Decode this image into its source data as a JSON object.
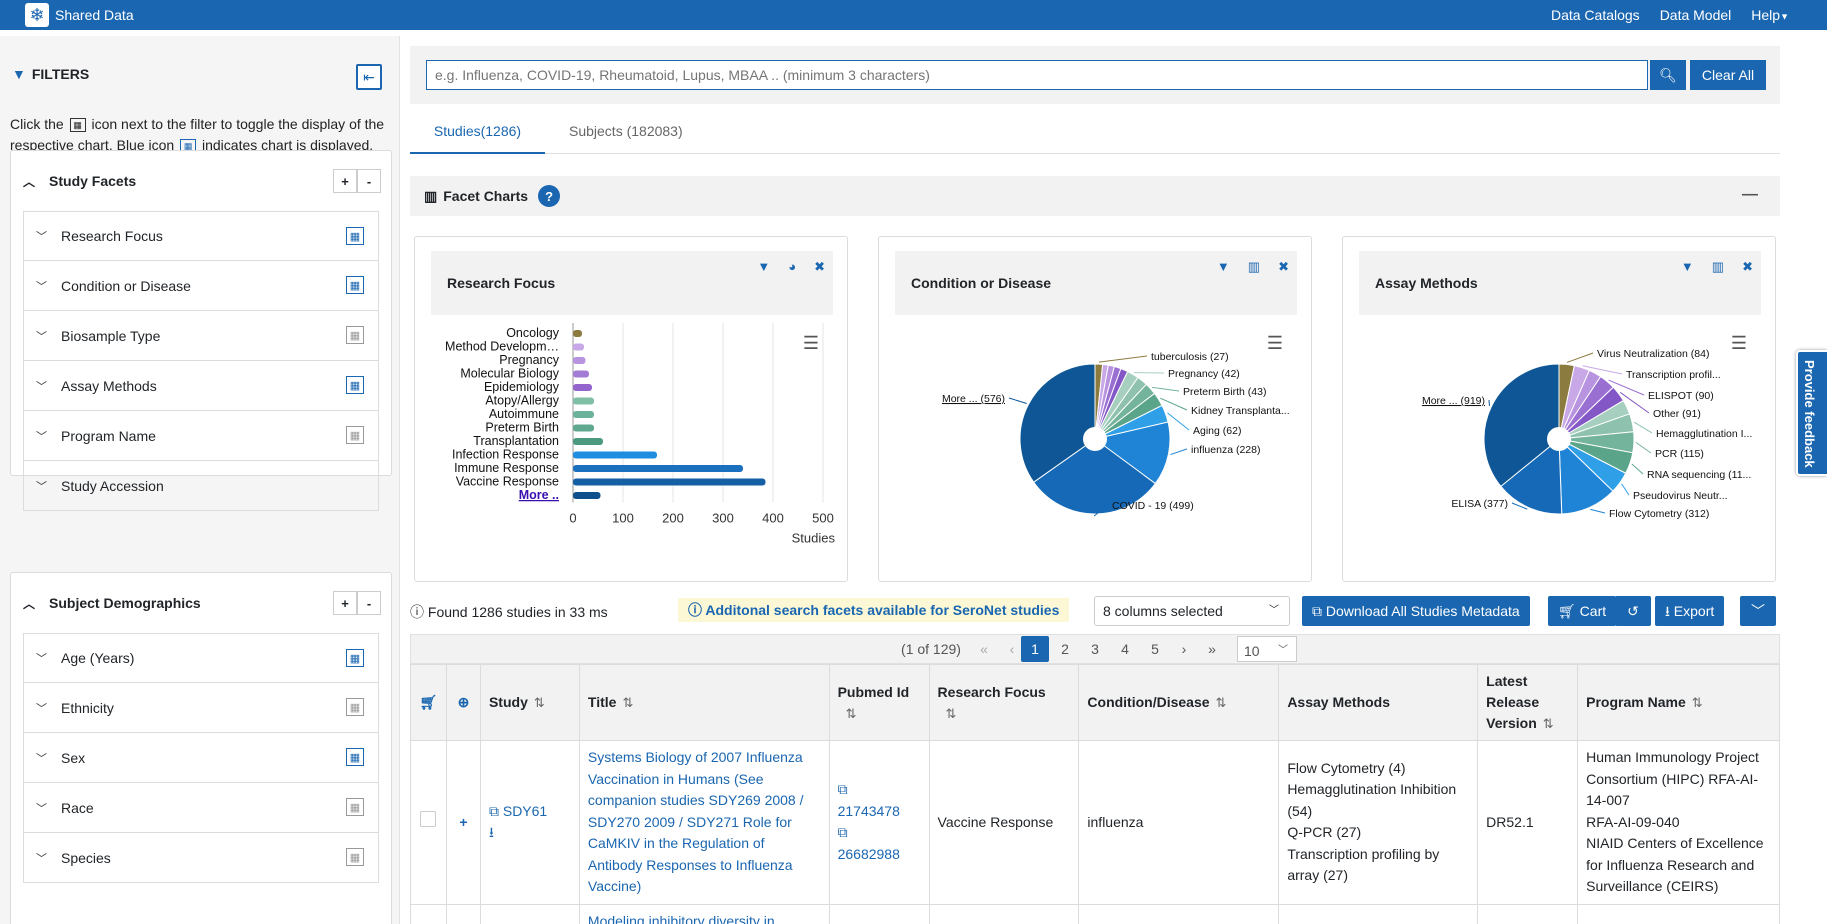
{
  "app": {
    "title": "Shared Data"
  },
  "nav": {
    "data_catalogs": "Data Catalogs",
    "data_model": "Data Model",
    "help": "Help"
  },
  "sidebar": {
    "title": "FILTERS",
    "help_part1": "Click the",
    "help_part2": "icon next to the filter to toggle the display of the respective chart. Blue icon",
    "help_part3": "indicates chart is displayed.",
    "study_facets": {
      "title": "Study Facets",
      "items": [
        {
          "label": "Research Focus",
          "chart_on": true
        },
        {
          "label": "Condition or Disease",
          "chart_on": true
        },
        {
          "label": "Biosample Type",
          "chart_on": false
        },
        {
          "label": "Assay Methods",
          "chart_on": true
        },
        {
          "label": "Program Name",
          "chart_on": false
        },
        {
          "label": "Study Accession",
          "chart_on": false
        }
      ]
    },
    "subject_demographics": {
      "title": "Subject Demographics",
      "items": [
        {
          "label": "Age (Years)",
          "chart_on": true
        },
        {
          "label": "Ethnicity",
          "chart_on": false
        },
        {
          "label": "Sex",
          "chart_on": true
        },
        {
          "label": "Race",
          "chart_on": false
        },
        {
          "label": "Species",
          "chart_on": false
        }
      ]
    }
  },
  "search": {
    "placeholder": "e.g. Influenza, COVID-19, Rheumatoid, Lupus, MBAA .. (minimum 3 characters)",
    "clear_label": "Clear All"
  },
  "tabs": {
    "studies": "Studies(1286)",
    "subjects": "Subjects (182083)"
  },
  "facet_charts": {
    "title": "Facet Charts"
  },
  "chart_data": [
    {
      "type": "bar",
      "title": "Research Focus",
      "orientation": "horizontal",
      "categories": [
        "Oncology",
        "Method Developm…",
        "Pregnancy",
        "Molecular Biology",
        "Epidemiology",
        "Atopy/Allergy",
        "Autoimmune",
        "Preterm Birth",
        "Transplantation",
        "Infection Response",
        "Immune Response",
        "Vaccine Response",
        "More .."
      ],
      "values": [
        18,
        22,
        25,
        32,
        38,
        42,
        42,
        42,
        60,
        168,
        340,
        385,
        55
      ],
      "colors": [
        "#8c7b3e",
        "#c9a8e8",
        "#b793e0",
        "#a37cd6",
        "#9365cc",
        "#7fbfa6",
        "#6cb19a",
        "#5fa78f",
        "#4b9a80",
        "#1f8de0",
        "#1a6fbf",
        "#155fa5",
        "#0e4f8c"
      ],
      "xlabel": "Studies",
      "xlim": [
        0,
        500
      ],
      "xticks": [
        0,
        100,
        200,
        300,
        400,
        500
      ]
    },
    {
      "type": "pie",
      "title": "Condition or Disease",
      "slices": [
        {
          "label": "tuberculosis (27)",
          "value": 27,
          "color": "#8c7b3e"
        },
        {
          "label": "",
          "value": 20,
          "color": "#c9a8e8"
        },
        {
          "label": "",
          "value": 22,
          "color": "#b793e0"
        },
        {
          "label": "",
          "value": 24,
          "color": "#9a6fd2"
        },
        {
          "label": "",
          "value": 26,
          "color": "#8457c6"
        },
        {
          "label": "Pregnancy (42)",
          "value": 42,
          "color": "#a7cfc0"
        },
        {
          "label": "",
          "value": 38,
          "color": "#8ec2ae"
        },
        {
          "label": "Preterm Birth (43)",
          "value": 43,
          "color": "#74b39c"
        },
        {
          "label": "Kidney Transplanta...",
          "value": 50,
          "color": "#5aa48a"
        },
        {
          "label": "Aging (62)",
          "value": 62,
          "color": "#2f9fe8"
        },
        {
          "label": "influenza (228)",
          "value": 228,
          "color": "#1f84d6"
        },
        {
          "label": "COVID - 19 (499)",
          "value": 499,
          "color": "#1569b6"
        },
        {
          "label": "More ... (576)",
          "value": 576,
          "color": "#0e5696"
        }
      ]
    },
    {
      "type": "pie",
      "title": "Assay Methods",
      "slices": [
        {
          "label": "Virus Neutralization (84)",
          "value": 84,
          "color": "#8c7b3e"
        },
        {
          "label": "Transcription profil...",
          "value": 86,
          "color": "#c9a8e8"
        },
        {
          "label": "",
          "value": 70,
          "color": "#b793e0"
        },
        {
          "label": "ELISPOT (90)",
          "value": 90,
          "color": "#9a6fd2"
        },
        {
          "label": "Other (91)",
          "value": 91,
          "color": "#8457c6"
        },
        {
          "label": "",
          "value": 80,
          "color": "#a7cfc0"
        },
        {
          "label": "Hemagglutination I...",
          "value": 100,
          "color": "#8ec2ae"
        },
        {
          "label": "PCR (115)",
          "value": 115,
          "color": "#74b39c"
        },
        {
          "label": "RNA sequencing (11...",
          "value": 118,
          "color": "#5aa48a"
        },
        {
          "label": "Pseudovirus Neutr...",
          "value": 120,
          "color": "#2f9fe8"
        },
        {
          "label": "Flow Cytometry (312)",
          "value": 312,
          "color": "#1f84d6"
        },
        {
          "label": "ELISA (377)",
          "value": 377,
          "color": "#1569b6"
        },
        {
          "label": "More ... (919)",
          "value": 919,
          "color": "#0e5696"
        }
      ]
    }
  ],
  "results": {
    "found": "Found 1286 studies in 33 ms",
    "seronet": "Additonal search facets available for SeroNet studies",
    "columns_selected": "8 columns selected",
    "download": "Download All Studies Metadata",
    "cart": "Cart",
    "export": "Export"
  },
  "pager": {
    "summary": "(1 of 129)",
    "pages": [
      "1",
      "2",
      "3",
      "4",
      "5"
    ],
    "rows": "10"
  },
  "table": {
    "headers": {
      "study": "Study",
      "title": "Title",
      "pubmed": "Pubmed Id",
      "focus": "Research Focus",
      "condition": "Condition/Disease",
      "assay": "Assay Methods",
      "release_1": "Latest",
      "release_2": "Release",
      "release_3": "Version",
      "program": "Program Name"
    },
    "row1": {
      "study": "SDY61",
      "title": "Systems Biology of 2007 Influenza Vaccination in Humans (See companion studies SDY269 2008 / SDY270 2009 / SDY271 Role for CaMKIV in the Regulation of Antibody Responses to Influenza Vaccine)",
      "pubmed_1": "21743478",
      "pubmed_2": "26682988",
      "focus": "Vaccine Response",
      "condition": "influenza",
      "assay_1": "Flow Cytometry (4)",
      "assay_2": "Hemagglutination Inhibition (54)",
      "assay_3": "Q-PCR (27)",
      "assay_4": "Transcription profiling by array (27)",
      "release": "DR52.1",
      "program_1": "Human Immunology Project Consortium (HIPC) RFA-AI-14-007",
      "program_2": "RFA-AI-09-040",
      "program_3": "NIAID Centers of Excellence for Influenza Research and Surveillance (CEIRS)"
    },
    "row2_title_partial": "Modeling inhibitory diversity in"
  },
  "feedback": {
    "label": "Provide feedback"
  }
}
